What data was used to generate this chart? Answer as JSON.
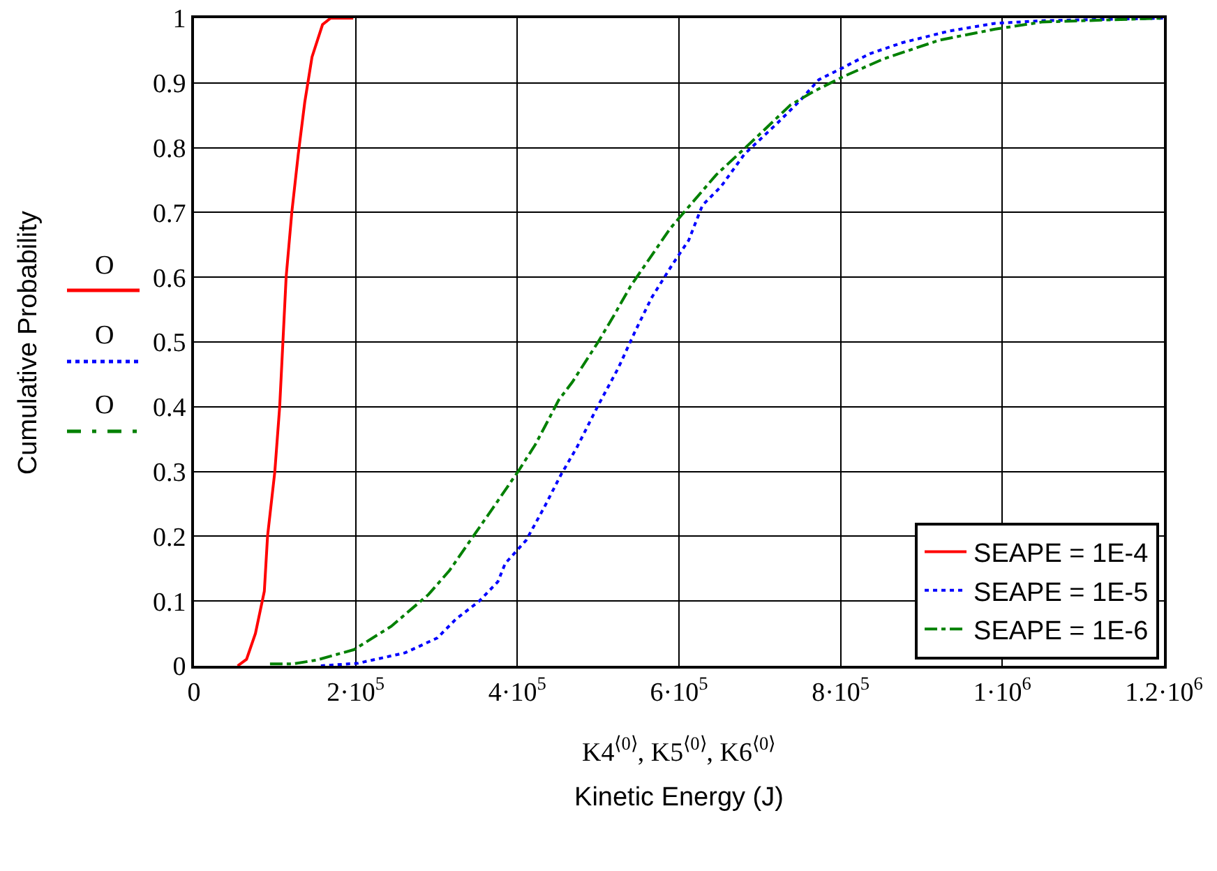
{
  "chart_data": {
    "type": "line",
    "xlabel": "Kinetic Energy (J)",
    "ylabel": "Cumulative Probability",
    "annotations": [
      "K4$^{⟨0⟩}$, K5$^{⟨0⟩}$, K6$^{⟨0⟩}$",
      "O",
      "O",
      "O"
    ],
    "xlim": [
      0,
      1200000
    ],
    "xticks": [
      0,
      {
        "value": 200000,
        "label": "2·10$^{5}$"
      },
      {
        "value": 400000,
        "label": "4·10$^{5}$"
      },
      {
        "value": 600000,
        "label": "6·10$^{5}$"
      },
      {
        "value": 800000,
        "label": "8·10$^{5}$"
      },
      {
        "value": 1000000,
        "label": "1·10$^{6}$"
      },
      {
        "value": 1200000,
        "label": "1.2·10$^{6}$"
      }
    ],
    "ylim": [
      0,
      1
    ],
    "yticks": [
      0,
      0.1,
      0.2,
      0.3,
      0.4,
      0.5,
      0.6,
      0.7,
      0.8,
      0.9,
      1
    ],
    "grid": true,
    "legend": "bottom right",
    "series": [
      {
        "name": "SEAPE = 1E-4",
        "color": "#ff0000",
        "line_style": "solid",
        "x": [
          54000,
          65000,
          76000,
          87000,
          91000,
          100000,
          106000,
          110000,
          114000,
          121000,
          129000,
          137000,
          146000,
          159000,
          169000,
          197000
        ],
        "values": [
          0,
          0.01,
          0.05,
          0.115,
          0.2,
          0.3,
          0.4,
          0.5,
          0.6,
          0.7,
          0.79,
          0.87,
          0.94,
          0.99,
          1,
          1
        ]
      },
      {
        "name": "SEAPE = 1E-5",
        "color": "#0000ff",
        "line_style": "dotted",
        "x": [
          157000,
          203000,
          261000,
          301000,
          324000,
          353000,
          376000,
          385000,
          411000,
          433000,
          454000,
          474000,
          500000,
          525000,
          546000,
          566000,
          592000,
          612000,
          629000,
          652000,
          681000,
          721000,
          750000,
          773000,
          802000,
          836000,
          876000,
          934000,
          991000,
          1049000,
          1200000
        ],
        "values": [
          0,
          0.004,
          0.02,
          0.043,
          0.072,
          0.1,
          0.13,
          0.158,
          0.194,
          0.244,
          0.295,
          0.338,
          0.402,
          0.46,
          0.517,
          0.568,
          0.62,
          0.657,
          0.711,
          0.74,
          0.79,
          0.837,
          0.873,
          0.905,
          0.923,
          0.945,
          0.962,
          0.98,
          0.992,
          0.996,
          1
        ]
      },
      {
        "name": "SEAPE = 1E-6",
        "color": "#008000",
        "line_style": "dashdot",
        "x": [
          94000,
          123000,
          152000,
          198000,
          244000,
          290000,
          316000,
          336000,
          370000,
          402000,
          422000,
          439000,
          451000,
          468000,
          500000,
          520000,
          540000,
          589000,
          606000,
          646000,
          695000,
          738000,
          767000,
          802000,
          853000,
          922000,
          991000,
          1049000,
          1200000
        ],
        "values": [
          0.003,
          0.003,
          0.009,
          0.025,
          0.061,
          0.11,
          0.147,
          0.183,
          0.244,
          0.302,
          0.341,
          0.381,
          0.41,
          0.438,
          0.5,
          0.542,
          0.586,
          0.675,
          0.7,
          0.758,
          0.815,
          0.866,
          0.887,
          0.909,
          0.937,
          0.966,
          0.983,
          0.994,
          1
        ]
      }
    ]
  }
}
